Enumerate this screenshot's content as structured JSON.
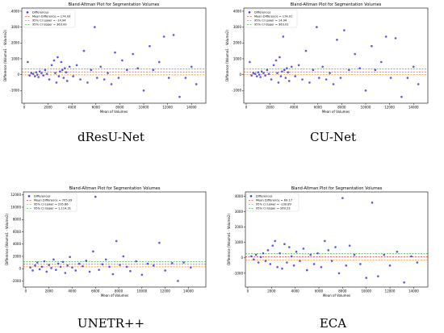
{
  "figure": {
    "panels": [
      {
        "caption": "dResU-Net",
        "chart_data": {
          "type": "scatter",
          "title": "Bland-Altman Plot for Segmentation Volumes",
          "xlabel": "Mean of Volumes",
          "ylabel": "Difference (Volume1 - Volume2)",
          "xlim": [
            -200,
            15200
          ],
          "ylim": [
            -1800,
            4200
          ],
          "xticks": [
            0,
            2000,
            4000,
            6000,
            8000,
            10000,
            12000,
            14000
          ],
          "yticks": [
            -1000,
            0,
            1000,
            2000,
            3000,
            4000
          ],
          "grid": false,
          "legend_position": "top-left",
          "series": [
            {
              "name": "Differences",
              "kind": "points",
              "color": "#3a3ae0",
              "x": [
                300,
                450,
                600,
                750,
                900,
                1000,
                1100,
                1200,
                1300,
                1450,
                1600,
                1750,
                1900,
                2100,
                2300,
                2500,
                2600,
                2700,
                2800,
                2900,
                3000,
                3100,
                3200,
                3300,
                3400,
                3500,
                3600,
                3800,
                4100,
                4400,
                4700,
                5000,
                5300,
                5600,
                5900,
                6100,
                6400,
                6700,
                7000,
                7300,
                7600,
                7900,
                8200,
                8600,
                9100,
                9500,
                10000,
                10500,
                10800,
                11300,
                11700,
                12100,
                12500,
                13000,
                13500,
                14000,
                14400
              ],
              "y": [
                800,
                -50,
                100,
                50,
                -100,
                150,
                0,
                -150,
                200,
                100,
                -50,
                300,
                50,
                -300,
                600,
                900,
                100,
                -500,
                1100,
                -100,
                200,
                800,
                300,
                -200,
                400,
                150,
                -400,
                500,
                -100,
                600,
                -300,
                1500,
                -500,
                300,
                3000,
                -200,
                500,
                -300,
                100,
                -600,
                1400,
                -200,
                900,
                300,
                1300,
                400,
                -1000,
                1800,
                300,
                800,
                2400,
                -200,
                2500,
                -1400,
                -200,
                500,
                -600
              ]
            },
            {
              "name": "Mean Difference = 174.03",
              "kind": "hline",
              "value": 174.03,
              "color": "#d62728",
              "dash": "2,1.5"
            },
            {
              "name": "95% CI Lower = -14.94",
              "kind": "hline",
              "value": -14.94,
              "color": "#ff7f0e",
              "dash": "2,1.5"
            },
            {
              "name": "95% CI Upper = 363.09",
              "kind": "hline",
              "value": 363.09,
              "color": "#2ca02c",
              "dash": "2,1.5"
            }
          ]
        }
      },
      {
        "caption": "CU-Net",
        "chart_data": {
          "type": "scatter",
          "title": "Bland-Altman Plot for Segmentation Volumes",
          "xlabel": "Mean of Volumes",
          "ylabel": "Difference (Volume1 - Volume2)",
          "xlim": [
            -200,
            15200
          ],
          "ylim": [
            -1800,
            4200
          ],
          "xticks": [
            0,
            2000,
            4000,
            6000,
            8000,
            10000,
            12000,
            14000
          ],
          "yticks": [
            -1000,
            0,
            1000,
            2000,
            3000,
            4000
          ],
          "grid": false,
          "legend_position": "top-left",
          "series": [
            {
              "name": "Differences",
              "kind": "points",
              "color": "#3a3ae0",
              "x": [
                300,
                450,
                600,
                750,
                900,
                1000,
                1100,
                1200,
                1300,
                1450,
                1600,
                1750,
                1900,
                2100,
                2300,
                2500,
                2600,
                2700,
                2800,
                2900,
                3000,
                3100,
                3200,
                3300,
                3400,
                3500,
                3600,
                3800,
                4100,
                4400,
                4700,
                5000,
                5300,
                5600,
                5900,
                6100,
                6400,
                6700,
                7000,
                7300,
                7600,
                7900,
                8200,
                8600,
                9100,
                9500,
                10000,
                10500,
                10800,
                11300,
                11700,
                12100,
                12500,
                13000,
                13500,
                14000,
                14400
              ],
              "y": [
                800,
                -50,
                100,
                50,
                -100,
                150,
                0,
                -150,
                200,
                100,
                -50,
                300,
                50,
                -300,
                600,
                900,
                100,
                -500,
                1100,
                -100,
                200,
                2400,
                300,
                -200,
                400,
                150,
                -400,
                500,
                -100,
                600,
                -300,
                1500,
                -500,
                300,
                3000,
                -200,
                500,
                -300,
                100,
                -600,
                2200,
                -200,
                2800,
                300,
                1300,
                400,
                -1000,
                1800,
                300,
                800,
                2400,
                -200,
                2300,
                -1400,
                -200,
                500,
                -600
              ]
            },
            {
              "name": "Mean Difference = 174.01",
              "kind": "hline",
              "value": 174.01,
              "color": "#d62728",
              "dash": "2,1.5"
            },
            {
              "name": "95% CI Lower = 14.94",
              "kind": "hline",
              "value": 14.94,
              "color": "#ff7f0e",
              "dash": "2,1.5"
            },
            {
              "name": "95% CI Upper = 363.01",
              "kind": "hline",
              "value": 363.01,
              "color": "#2ca02c",
              "dash": "2,1.5"
            }
          ]
        }
      },
      {
        "caption": "UNETR++",
        "chart_data": {
          "type": "scatter",
          "title": "Bland-Altman Plot for Segmentation Volumes",
          "xlabel": "Mean of Volumes",
          "ylabel": "Difference (Volume1 - Volume2)",
          "xlim": [
            -200,
            15500
          ],
          "ylim": [
            -3000,
            12500
          ],
          "xticks": [
            0,
            2000,
            4000,
            6000,
            8000,
            10000,
            12000,
            14000
          ],
          "yticks": [
            -2000,
            0,
            2000,
            4000,
            6000,
            8000,
            10000,
            12000
          ],
          "grid": false,
          "legend_position": "top-left",
          "series": [
            {
              "name": "Differences",
              "kind": "points",
              "color": "#3a3ae0",
              "x": [
                400,
                600,
                800,
                1000,
                1200,
                1400,
                1600,
                1800,
                2000,
                2200,
                2400,
                2600,
                2800,
                3000,
                3200,
                3400,
                3600,
                3800,
                4000,
                4300,
                4600,
                4900,
                5200,
                5500,
                5800,
                6000,
                6300,
                6600,
                6900,
                7200,
                7500,
                7800,
                8100,
                8400,
                8700,
                9000,
                9500,
                10000,
                10500,
                11000,
                11500,
                12000,
                12600,
                13100,
                13600,
                14200
              ],
              "y": [
                200,
                -300,
                500,
                1000,
                -100,
                300,
                1200,
                -500,
                600,
                100,
                1500,
                -200,
                800,
                300,
                1100,
                -700,
                500,
                1900,
                200,
                -300,
                800,
                400,
                1300,
                -500,
                2800,
                11700,
                -200,
                700,
                1500,
                300,
                -900,
                4500,
                600,
                2000,
                300,
                -400,
                1200,
                -1000,
                800,
                500,
                4200,
                -300,
                900,
                -2000,
                1000,
                200
              ]
            },
            {
              "name": "Mean Difference = 705.09",
              "kind": "hline",
              "value": 705.09,
              "color": "#d62728",
              "dash": "2,1.5"
            },
            {
              "name": "95% CI Lower = 295.86",
              "kind": "hline",
              "value": 295.86,
              "color": "#ff7f0e",
              "dash": "2,1.5"
            },
            {
              "name": "95% CI Upper = 1,114.31",
              "kind": "hline",
              "value": 1114.31,
              "color": "#2ca02c",
              "dash": "2,1.5"
            }
          ]
        }
      },
      {
        "caption": "ECA",
        "chart_data": {
          "type": "scatter",
          "title": "Bland-Altman Plot for Segmentation Volumes",
          "xlabel": "Mean of Volumes",
          "ylabel": "Difference (Volume1 - Volume2)",
          "xlim": [
            -200,
            15200
          ],
          "ylim": [
            -1900,
            4300
          ],
          "xticks": [
            0,
            2000,
            4000,
            6000,
            8000,
            10000,
            12000,
            14000
          ],
          "yticks": [
            -1000,
            0,
            1000,
            2000,
            3000,
            4000
          ],
          "grid": false,
          "legend_position": "top-left",
          "series": [
            {
              "name": "Differences",
              "kind": "points",
              "color": "#3a3ae0",
              "x": [
                300,
                500,
                700,
                900,
                1100,
                1300,
                1500,
                1700,
                1900,
                2100,
                2300,
                2500,
                2700,
                2900,
                3100,
                3300,
                3500,
                3700,
                3900,
                4100,
                4400,
                4700,
                5000,
                5300,
                5600,
                5900,
                6200,
                6500,
                6800,
                7100,
                7400,
                7700,
                8000,
                8300,
                8600,
                9000,
                9500,
                10000,
                10500,
                11000,
                11500,
                12000,
                12600,
                13200,
                13800,
                14300
              ],
              "y": [
                100,
                -100,
                200,
                -300,
                50,
                300,
                -200,
                500,
                -400,
                800,
                1100,
                -600,
                300,
                -700,
                900,
                -300,
                700,
                100,
                -500,
                400,
                -200,
                600,
                -800,
                200,
                -400,
                300,
                -600,
                1100,
                500,
                -200,
                700,
                -1000,
                3900,
                -500,
                800,
                200,
                -400,
                -1300,
                3600,
                -1200,
                200,
                -500,
                400,
                -1600,
                100,
                -300
              ]
            },
            {
              "name": "Mean Difference = 69.17",
              "kind": "hline",
              "value": 69.17,
              "color": "#d62728",
              "dash": "2,1.5"
            },
            {
              "name": "95% CI Lower = -130.89",
              "kind": "hline",
              "value": -130.89,
              "color": "#ff7f0e",
              "dash": "2,1.5"
            },
            {
              "name": "95% CI Upper = 269.23",
              "kind": "hline",
              "value": 269.23,
              "color": "#2ca02c",
              "dash": "2,1.5"
            }
          ]
        }
      }
    ]
  }
}
